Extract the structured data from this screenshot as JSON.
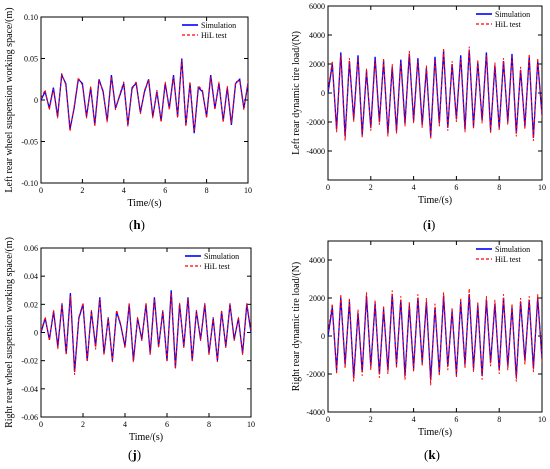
{
  "chart_data": [
    {
      "type": "line",
      "panel": "h",
      "xlabel": "Time/(s)",
      "ylabel": "Left rear wheel suspension working space/(m)",
      "xlim": [
        0,
        10
      ],
      "ylim": [
        -0.1,
        0.1
      ],
      "xticks": [
        0,
        2,
        4,
        6,
        8,
        10
      ],
      "yticks": [
        -0.1,
        -0.05,
        0,
        0.05,
        0.1
      ],
      "ytick_labels": [
        "-0.10",
        "-0.05",
        "0",
        "0.05",
        "0.10"
      ],
      "legend": "top-right",
      "series": [
        {
          "name": "Simulation",
          "color": "#0000ff",
          "style": "solid",
          "x": [
            0,
            0.2,
            0.4,
            0.6,
            0.8,
            1.0,
            1.2,
            1.4,
            1.6,
            1.8,
            2.0,
            2.2,
            2.4,
            2.6,
            2.8,
            3.0,
            3.2,
            3.4,
            3.6,
            3.8,
            4.0,
            4.2,
            4.4,
            4.6,
            4.8,
            5.0,
            5.2,
            5.4,
            5.6,
            5.8,
            6.0,
            6.2,
            6.4,
            6.6,
            6.8,
            7.0,
            7.2,
            7.4,
            7.6,
            7.8,
            8.0,
            8.2,
            8.4,
            8.6,
            8.8,
            9.0,
            9.2,
            9.4,
            9.6,
            9.8,
            10.0
          ],
          "y": [
            0,
            0.01,
            -0.01,
            0.015,
            -0.02,
            0.03,
            0.02,
            -0.035,
            -0.01,
            0.025,
            0.02,
            -0.02,
            0.015,
            -0.03,
            0.025,
            0.01,
            -0.025,
            0.03,
            -0.01,
            0.005,
            0.02,
            -0.03,
            0.015,
            0.02,
            -0.015,
            0.01,
            0.025,
            -0.02,
            0.01,
            -0.025,
            0.02,
            -0.01,
            0.03,
            -0.02,
            0.05,
            -0.03,
            0.02,
            -0.04,
            0.015,
            0.01,
            -0.02,
            0.03,
            -0.01,
            0.02,
            -0.025,
            0.015,
            -0.03,
            0.02,
            0.025,
            -0.01,
            0.02
          ]
        },
        {
          "name": "HiL test",
          "color": "#ff0000",
          "style": "dashed",
          "x": [
            0,
            0.2,
            0.4,
            0.6,
            0.8,
            1.0,
            1.2,
            1.4,
            1.6,
            1.8,
            2.0,
            2.2,
            2.4,
            2.6,
            2.8,
            3.0,
            3.2,
            3.4,
            3.6,
            3.8,
            4.0,
            4.2,
            4.4,
            4.6,
            4.8,
            5.0,
            5.2,
            5.4,
            5.6,
            5.8,
            6.0,
            6.2,
            6.4,
            6.6,
            6.8,
            7.0,
            7.2,
            7.4,
            7.6,
            7.8,
            8.0,
            8.2,
            8.4,
            8.6,
            8.8,
            9.0,
            9.2,
            9.4,
            9.6,
            9.8,
            10.0
          ],
          "y": [
            0.002,
            0.012,
            -0.012,
            0.013,
            -0.022,
            0.032,
            0.018,
            -0.038,
            -0.008,
            0.027,
            0.018,
            -0.022,
            0.017,
            -0.032,
            0.023,
            0.012,
            -0.027,
            0.028,
            -0.012,
            0.007,
            0.022,
            -0.032,
            0.013,
            0.022,
            -0.017,
            0.012,
            0.023,
            -0.022,
            0.012,
            -0.027,
            0.022,
            -0.012,
            0.028,
            -0.022,
            0.048,
            -0.032,
            0.022,
            -0.038,
            0.017,
            0.012,
            -0.022,
            0.028,
            -0.012,
            0.022,
            -0.027,
            0.017,
            -0.028,
            0.022,
            0.023,
            -0.012,
            0.022
          ]
        }
      ]
    },
    {
      "type": "line",
      "panel": "i",
      "xlabel": "Time/(s)",
      "ylabel": "Left rear dynamic tire load/(N)",
      "xlim": [
        0,
        10
      ],
      "ylim": [
        -6000,
        6000
      ],
      "xticks": [
        0,
        2,
        4,
        6,
        8,
        10
      ],
      "yticks": [
        -4000,
        -2000,
        0,
        2000,
        4000,
        6000
      ],
      "ytick_labels": [
        "-4000",
        "-2000",
        "0",
        "2000",
        "4000",
        "6000"
      ],
      "legend": "top-right",
      "series": [
        {
          "name": "Simulation",
          "color": "#0000ff",
          "style": "solid",
          "x": [
            0,
            0.2,
            0.4,
            0.6,
            0.8,
            1.0,
            1.2,
            1.4,
            1.6,
            1.8,
            2.0,
            2.2,
            2.4,
            2.6,
            2.8,
            3.0,
            3.2,
            3.4,
            3.6,
            3.8,
            4.0,
            4.2,
            4.4,
            4.6,
            4.8,
            5.0,
            5.2,
            5.4,
            5.6,
            5.8,
            6.0,
            6.2,
            6.4,
            6.6,
            6.8,
            7.0,
            7.2,
            7.4,
            7.6,
            7.8,
            8.0,
            8.2,
            8.4,
            8.6,
            8.8,
            9.0,
            9.2,
            9.4,
            9.6,
            9.8,
            10.0
          ],
          "y": [
            0,
            2000,
            -2500,
            2800,
            -3000,
            2200,
            -1800,
            2600,
            -2900,
            1500,
            -2400,
            2500,
            -2000,
            2200,
            -2800,
            1800,
            -2600,
            2300,
            -2100,
            2700,
            -1900,
            2400,
            -2200,
            1700,
            -3000,
            2500,
            -2100,
            2900,
            -2400,
            2000,
            -1800,
            2600,
            -2500,
            3000,
            -2300,
            2100,
            -1900,
            2800,
            -2600,
            1900,
            -2400,
            2200,
            -2000,
            2700,
            -2800,
            1600,
            -2300,
            2500,
            -3100,
            2200,
            -1500
          ]
        },
        {
          "name": "HiL test",
          "color": "#ff0000",
          "style": "dashed",
          "x": [
            0,
            0.2,
            0.4,
            0.6,
            0.8,
            1.0,
            1.2,
            1.4,
            1.6,
            1.8,
            2.0,
            2.2,
            2.4,
            2.6,
            2.8,
            3.0,
            3.2,
            3.4,
            3.6,
            3.8,
            4.0,
            4.2,
            4.4,
            4.6,
            4.8,
            5.0,
            5.2,
            5.4,
            5.6,
            5.8,
            6.0,
            6.2,
            6.4,
            6.6,
            6.8,
            7.0,
            7.2,
            7.4,
            7.6,
            7.8,
            8.0,
            8.2,
            8.4,
            8.6,
            8.8,
            9.0,
            9.2,
            9.4,
            9.6,
            9.8,
            10.0
          ],
          "y": [
            200,
            2200,
            -2700,
            2600,
            -3300,
            2400,
            -2000,
            2400,
            -3100,
            1700,
            -2600,
            2300,
            -2200,
            2400,
            -3000,
            2000,
            -2800,
            2100,
            -2300,
            2900,
            -2100,
            2200,
            -2400,
            1900,
            -3200,
            2300,
            -2300,
            3100,
            -2600,
            2200,
            -2000,
            2400,
            -2700,
            3200,
            -2500,
            2300,
            -2100,
            2600,
            -2800,
            2100,
            -2600,
            2400,
            -2200,
            2500,
            -3000,
            1800,
            -2500,
            2700,
            -3300,
            2400,
            -1700
          ]
        }
      ]
    },
    {
      "type": "line",
      "panel": "j",
      "xlabel": "Time/(s)",
      "ylabel": "Right rear wheel suspension working space/(m)",
      "xlim": [
        0,
        10
      ],
      "ylim": [
        -0.06,
        0.06
      ],
      "xticks": [
        0,
        2,
        4,
        6,
        8,
        10
      ],
      "yticks": [
        -0.06,
        -0.04,
        -0.02,
        0,
        0.02,
        0.04,
        0.06
      ],
      "ytick_labels": [
        "-0.06",
        "-0.04",
        "-0.02",
        "0",
        "0.02",
        "0.04",
        "0.06"
      ],
      "legend": "top-right",
      "series": [
        {
          "name": "Simulation",
          "color": "#0000ff",
          "style": "solid",
          "x": [
            0,
            0.2,
            0.4,
            0.6,
            0.8,
            1.0,
            1.2,
            1.4,
            1.6,
            1.8,
            2.0,
            2.2,
            2.4,
            2.6,
            2.8,
            3.0,
            3.2,
            3.4,
            3.6,
            3.8,
            4.0,
            4.2,
            4.4,
            4.6,
            4.8,
            5.0,
            5.2,
            5.4,
            5.6,
            5.8,
            6.0,
            6.2,
            6.4,
            6.6,
            6.8,
            7.0,
            7.2,
            7.4,
            7.6,
            7.8,
            8.0,
            8.2,
            8.4,
            8.6,
            8.8,
            9.0,
            9.2,
            9.4,
            9.6,
            9.8,
            10.0
          ],
          "y": [
            0,
            0.01,
            -0.005,
            0.015,
            -0.01,
            0.02,
            -0.015,
            0.028,
            -0.028,
            0.01,
            0.02,
            -0.02,
            0.015,
            -0.01,
            0.025,
            -0.015,
            0.01,
            -0.02,
            0.015,
            0.005,
            -0.01,
            0.02,
            -0.02,
            0.01,
            -0.005,
            0.02,
            -0.015,
            0.025,
            -0.01,
            0.015,
            -0.02,
            0.03,
            -0.025,
            0.02,
            -0.01,
            0.025,
            -0.02,
            0.015,
            -0.005,
            0.02,
            -0.015,
            0.01,
            -0.02,
            0.015,
            -0.01,
            0.02,
            -0.005,
            0.01,
            -0.015,
            0.02,
            0
          ]
        },
        {
          "name": "HiL test",
          "color": "#ff0000",
          "style": "dashed",
          "x": [
            0,
            0.2,
            0.4,
            0.6,
            0.8,
            1.0,
            1.2,
            1.4,
            1.6,
            1.8,
            2.0,
            2.2,
            2.4,
            2.6,
            2.8,
            3.0,
            3.2,
            3.4,
            3.6,
            3.8,
            4.0,
            4.2,
            4.4,
            4.6,
            4.8,
            5.0,
            5.2,
            5.4,
            5.6,
            5.8,
            6.0,
            6.2,
            6.4,
            6.6,
            6.8,
            7.0,
            7.2,
            7.4,
            7.6,
            7.8,
            8.0,
            8.2,
            8.4,
            8.6,
            8.8,
            9.0,
            9.2,
            9.4,
            9.6,
            9.8,
            10.0
          ],
          "y": [
            0.001,
            0.011,
            -0.006,
            0.016,
            -0.012,
            0.021,
            -0.016,
            0.026,
            -0.03,
            0.011,
            0.021,
            -0.021,
            0.016,
            -0.012,
            0.024,
            -0.016,
            0.011,
            -0.021,
            0.016,
            0.006,
            -0.011,
            0.021,
            -0.021,
            0.011,
            -0.006,
            0.021,
            -0.016,
            0.024,
            -0.011,
            0.016,
            -0.021,
            0.028,
            -0.026,
            0.021,
            -0.011,
            0.024,
            -0.021,
            0.016,
            -0.006,
            0.021,
            -0.016,
            0.011,
            -0.021,
            0.016,
            -0.011,
            0.021,
            -0.006,
            0.011,
            -0.016,
            0.021,
            0.001
          ]
        }
      ]
    },
    {
      "type": "line",
      "panel": "k",
      "xlabel": "Time/(s)",
      "ylabel": "Right rear dynamic tire load/(N)",
      "xlim": [
        0,
        10
      ],
      "ylim": [
        -4000,
        5000
      ],
      "xticks": [
        0,
        2,
        4,
        6,
        8,
        10
      ],
      "yticks": [
        -4000,
        -2000,
        0,
        2000,
        4000
      ],
      "ytick_labels": [
        "-4000",
        "-2000",
        "0",
        "2000",
        "4000"
      ],
      "legend": "top-right",
      "series": [
        {
          "name": "Simulation",
          "color": "#0000ff",
          "style": "solid",
          "x": [
            0,
            0.2,
            0.4,
            0.6,
            0.8,
            1.0,
            1.2,
            1.4,
            1.6,
            1.8,
            2.0,
            2.2,
            2.4,
            2.6,
            2.8,
            3.0,
            3.2,
            3.4,
            3.6,
            3.8,
            4.0,
            4.2,
            4.4,
            4.6,
            4.8,
            5.0,
            5.2,
            5.4,
            5.6,
            5.8,
            6.0,
            6.2,
            6.4,
            6.6,
            6.8,
            7.0,
            7.2,
            7.4,
            7.6,
            7.8,
            8.0,
            8.2,
            8.4,
            8.6,
            8.8,
            9.0,
            9.2,
            9.4,
            9.6,
            9.8,
            10.0
          ],
          "y": [
            0,
            1500,
            -1800,
            2000,
            -1500,
            1800,
            -2200,
            1200,
            -1900,
            2100,
            -1600,
            1700,
            -2000,
            1400,
            -1800,
            2200,
            -1500,
            1900,
            -2100,
            1600,
            -1700,
            2000,
            -1400,
            1800,
            -2300,
            1500,
            -1900,
            2100,
            -1600,
            1300,
            -2000,
            1800,
            -1500,
            2200,
            -1700,
            1600,
            -2100,
            1900,
            -1400,
            1700,
            -1800,
            2000,
            -1600,
            1500,
            -2200,
            1800,
            -1300,
            1900,
            -1700,
            2000,
            -1200
          ]
        },
        {
          "name": "HiL test",
          "color": "#ff0000",
          "style": "dashed",
          "x": [
            0,
            0.2,
            0.4,
            0.6,
            0.8,
            1.0,
            1.2,
            1.4,
            1.6,
            1.8,
            2.0,
            2.2,
            2.4,
            2.6,
            2.8,
            3.0,
            3.2,
            3.4,
            3.6,
            3.8,
            4.0,
            4.2,
            4.4,
            4.6,
            4.8,
            5.0,
            5.2,
            5.4,
            5.6,
            5.8,
            6.0,
            6.2,
            6.4,
            6.6,
            6.8,
            7.0,
            7.2,
            7.4,
            7.6,
            7.8,
            8.0,
            8.2,
            8.4,
            8.6,
            8.8,
            9.0,
            9.2,
            9.4,
            9.6,
            9.8,
            10.0
          ],
          "y": [
            200,
            1700,
            -2000,
            2200,
            -1700,
            2000,
            -2400,
            1400,
            -2100,
            2300,
            -1800,
            1900,
            -2200,
            1600,
            -2000,
            2400,
            -1700,
            2100,
            -2300,
            1800,
            -1900,
            2200,
            -1600,
            2000,
            -2600,
            1700,
            -2100,
            2300,
            -1800,
            1500,
            -2200,
            2000,
            -1700,
            2500,
            -1900,
            1800,
            -2300,
            2100,
            -1600,
            1900,
            -2000,
            2200,
            -1800,
            1700,
            -2400,
            2000,
            -1500,
            2100,
            -1900,
            2200,
            -1400
          ]
        }
      ]
    }
  ],
  "panel_labels": {
    "h": "(h)",
    "i": "(i)",
    "j": "(j)",
    "k": "(k)"
  }
}
